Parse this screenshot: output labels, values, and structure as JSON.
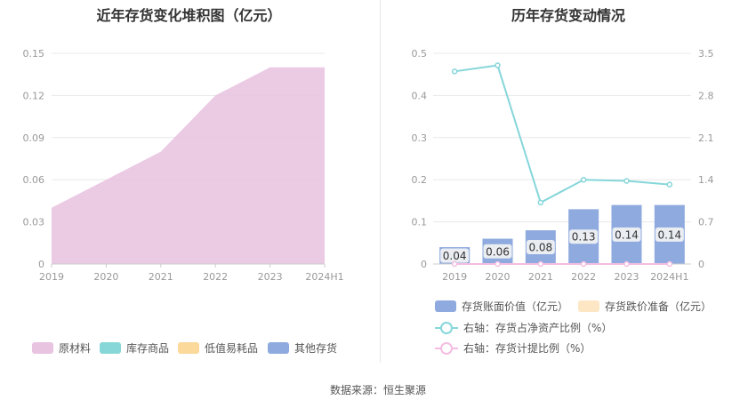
{
  "source_label": "数据来源：恒生聚源",
  "colors": {
    "raw_material": "#e9c4e1",
    "inventory_goods": "#87d7d9",
    "low_value": "#fad99a",
    "other": "#8eaade",
    "ratio_line": "#86d6da",
    "provision_line": "#f4bde1",
    "grid": "#e8e8e8",
    "axis_text": "#999999"
  },
  "chart_data": [
    {
      "type": "area",
      "title": "近年存货变化堆积图（亿元）",
      "categories": [
        "2019",
        "2020",
        "2021",
        "2022",
        "2023",
        "2024H1"
      ],
      "yticks": [
        "0",
        "0.03",
        "0.06",
        "0.09",
        "0.12",
        "0.15"
      ],
      "ylim": [
        0,
        0.15
      ],
      "series": [
        {
          "name": "原材料",
          "values": [
            0.04,
            0.06,
            0.08,
            0.12,
            0.14,
            0.14
          ]
        },
        {
          "name": "库存商品",
          "values": [
            0,
            0,
            0,
            0,
            0,
            0
          ]
        },
        {
          "name": "低值易耗品",
          "values": [
            0,
            0,
            0,
            0,
            0,
            0
          ]
        },
        {
          "name": "其他存货",
          "values": [
            0,
            0,
            0,
            0,
            0,
            0
          ]
        }
      ],
      "grid": true,
      "legend_position": "bottom"
    },
    {
      "type": "bar",
      "title": "历年存货变动情况",
      "categories": [
        "2019",
        "2020",
        "2021",
        "2022",
        "2023",
        "2024H1"
      ],
      "yticks_left": [
        "0",
        "0.1",
        "0.2",
        "0.3",
        "0.4",
        "0.5"
      ],
      "yticks_right": [
        "0",
        "0.7",
        "1.4",
        "2.1",
        "2.8",
        "3.5"
      ],
      "ylim_left": [
        0,
        0.5
      ],
      "ylim_right": [
        0,
        3.5
      ],
      "series": [
        {
          "name": "存货账面价值（亿元）",
          "axis": "left",
          "kind": "bar",
          "values": [
            0.04,
            0.06,
            0.08,
            0.13,
            0.14,
            0.14
          ],
          "labels": [
            "0.04",
            "0.06",
            "0.08",
            "0.13",
            "0.14",
            "0.14"
          ]
        },
        {
          "name": "存货跌价准备（亿元）",
          "axis": "left",
          "kind": "bar",
          "values": [
            0,
            0,
            0,
            0,
            0,
            0
          ]
        },
        {
          "name": "右轴：存货占净资产比例（%）",
          "axis": "right",
          "kind": "line",
          "values": [
            3.2,
            3.3,
            1.02,
            1.4,
            1.38,
            1.32
          ]
        },
        {
          "name": "右轴：存货计提比例（%）",
          "axis": "right",
          "kind": "line",
          "values": [
            0,
            0,
            0,
            0,
            0,
            0
          ]
        }
      ],
      "grid": true,
      "legend_position": "bottom"
    }
  ]
}
